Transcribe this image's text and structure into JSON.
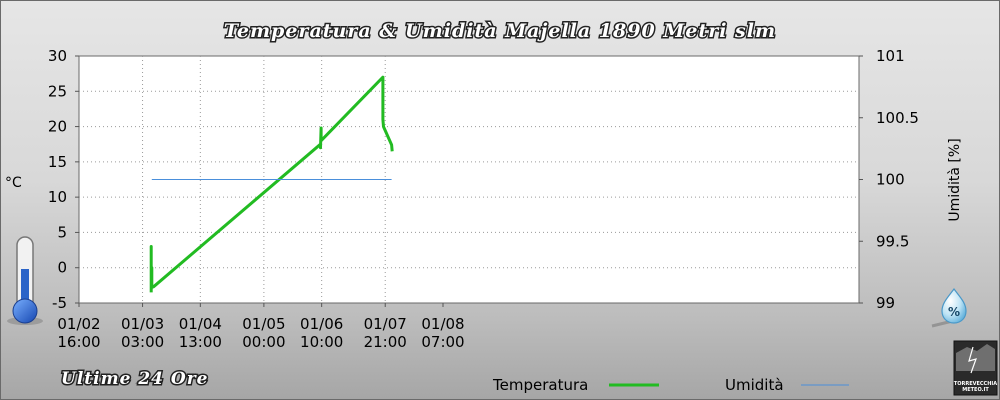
{
  "chart_data": {
    "type": "line",
    "title": "Temperatura & Umidità Majella 1890 Metri slm",
    "subtitle": "Ultime 24 Ore",
    "ylabel_left": "°C",
    "ylabel_right": "Umidità [%]",
    "ylim_left": [
      -5,
      30
    ],
    "yticks_left": [
      "30",
      "25",
      "20",
      "15",
      "10",
      "5",
      "0",
      "-5"
    ],
    "ylim_right": [
      99,
      101
    ],
    "yticks_right": [
      "101",
      "100.5",
      "100",
      "99.5",
      "99"
    ],
    "x_range_hours": [
      0,
      135
    ],
    "x_ticks": [
      {
        "date": "01/02",
        "time": "16:00",
        "h": 0
      },
      {
        "date": "01/03",
        "time": "03:00",
        "h": 11
      },
      {
        "date": "01/04",
        "time": "13:00",
        "h": 21
      },
      {
        "date": "01/05",
        "time": "00:00",
        "h": 32
      },
      {
        "date": "01/06",
        "time": "10:00",
        "h": 42
      },
      {
        "date": "01/07",
        "time": "21:00",
        "h": 53
      },
      {
        "date": "01/08",
        "time": "07:00",
        "h": 63
      }
    ],
    "grid": true,
    "legend_position": "bottom-right",
    "series": [
      {
        "name": "Temperatura",
        "axis": "left",
        "color": "#22bb22",
        "x": [
          12.5,
          12.5,
          12.5,
          12.6,
          12.6,
          12.9,
          41.8,
          41.8,
          41.9,
          41.9,
          52.6,
          52.6,
          52.7,
          52.8,
          54.1,
          54.2
        ],
        "y": [
          -3.5,
          3.0,
          -3.2,
          0.0,
          -2.8,
          -2.7,
          17.5,
          17.0,
          19.8,
          18.0,
          27.0,
          21.0,
          20.0,
          19.8,
          17.4,
          16.5
        ]
      },
      {
        "name": "Umidità",
        "axis": "right",
        "color": "#4a8fdb",
        "x": [
          12.6,
          54.1
        ],
        "y": [
          100,
          100
        ]
      }
    ]
  },
  "branding": {
    "logo_line1": "TORREVECCHIA",
    "logo_line2": "METEO.IT"
  }
}
